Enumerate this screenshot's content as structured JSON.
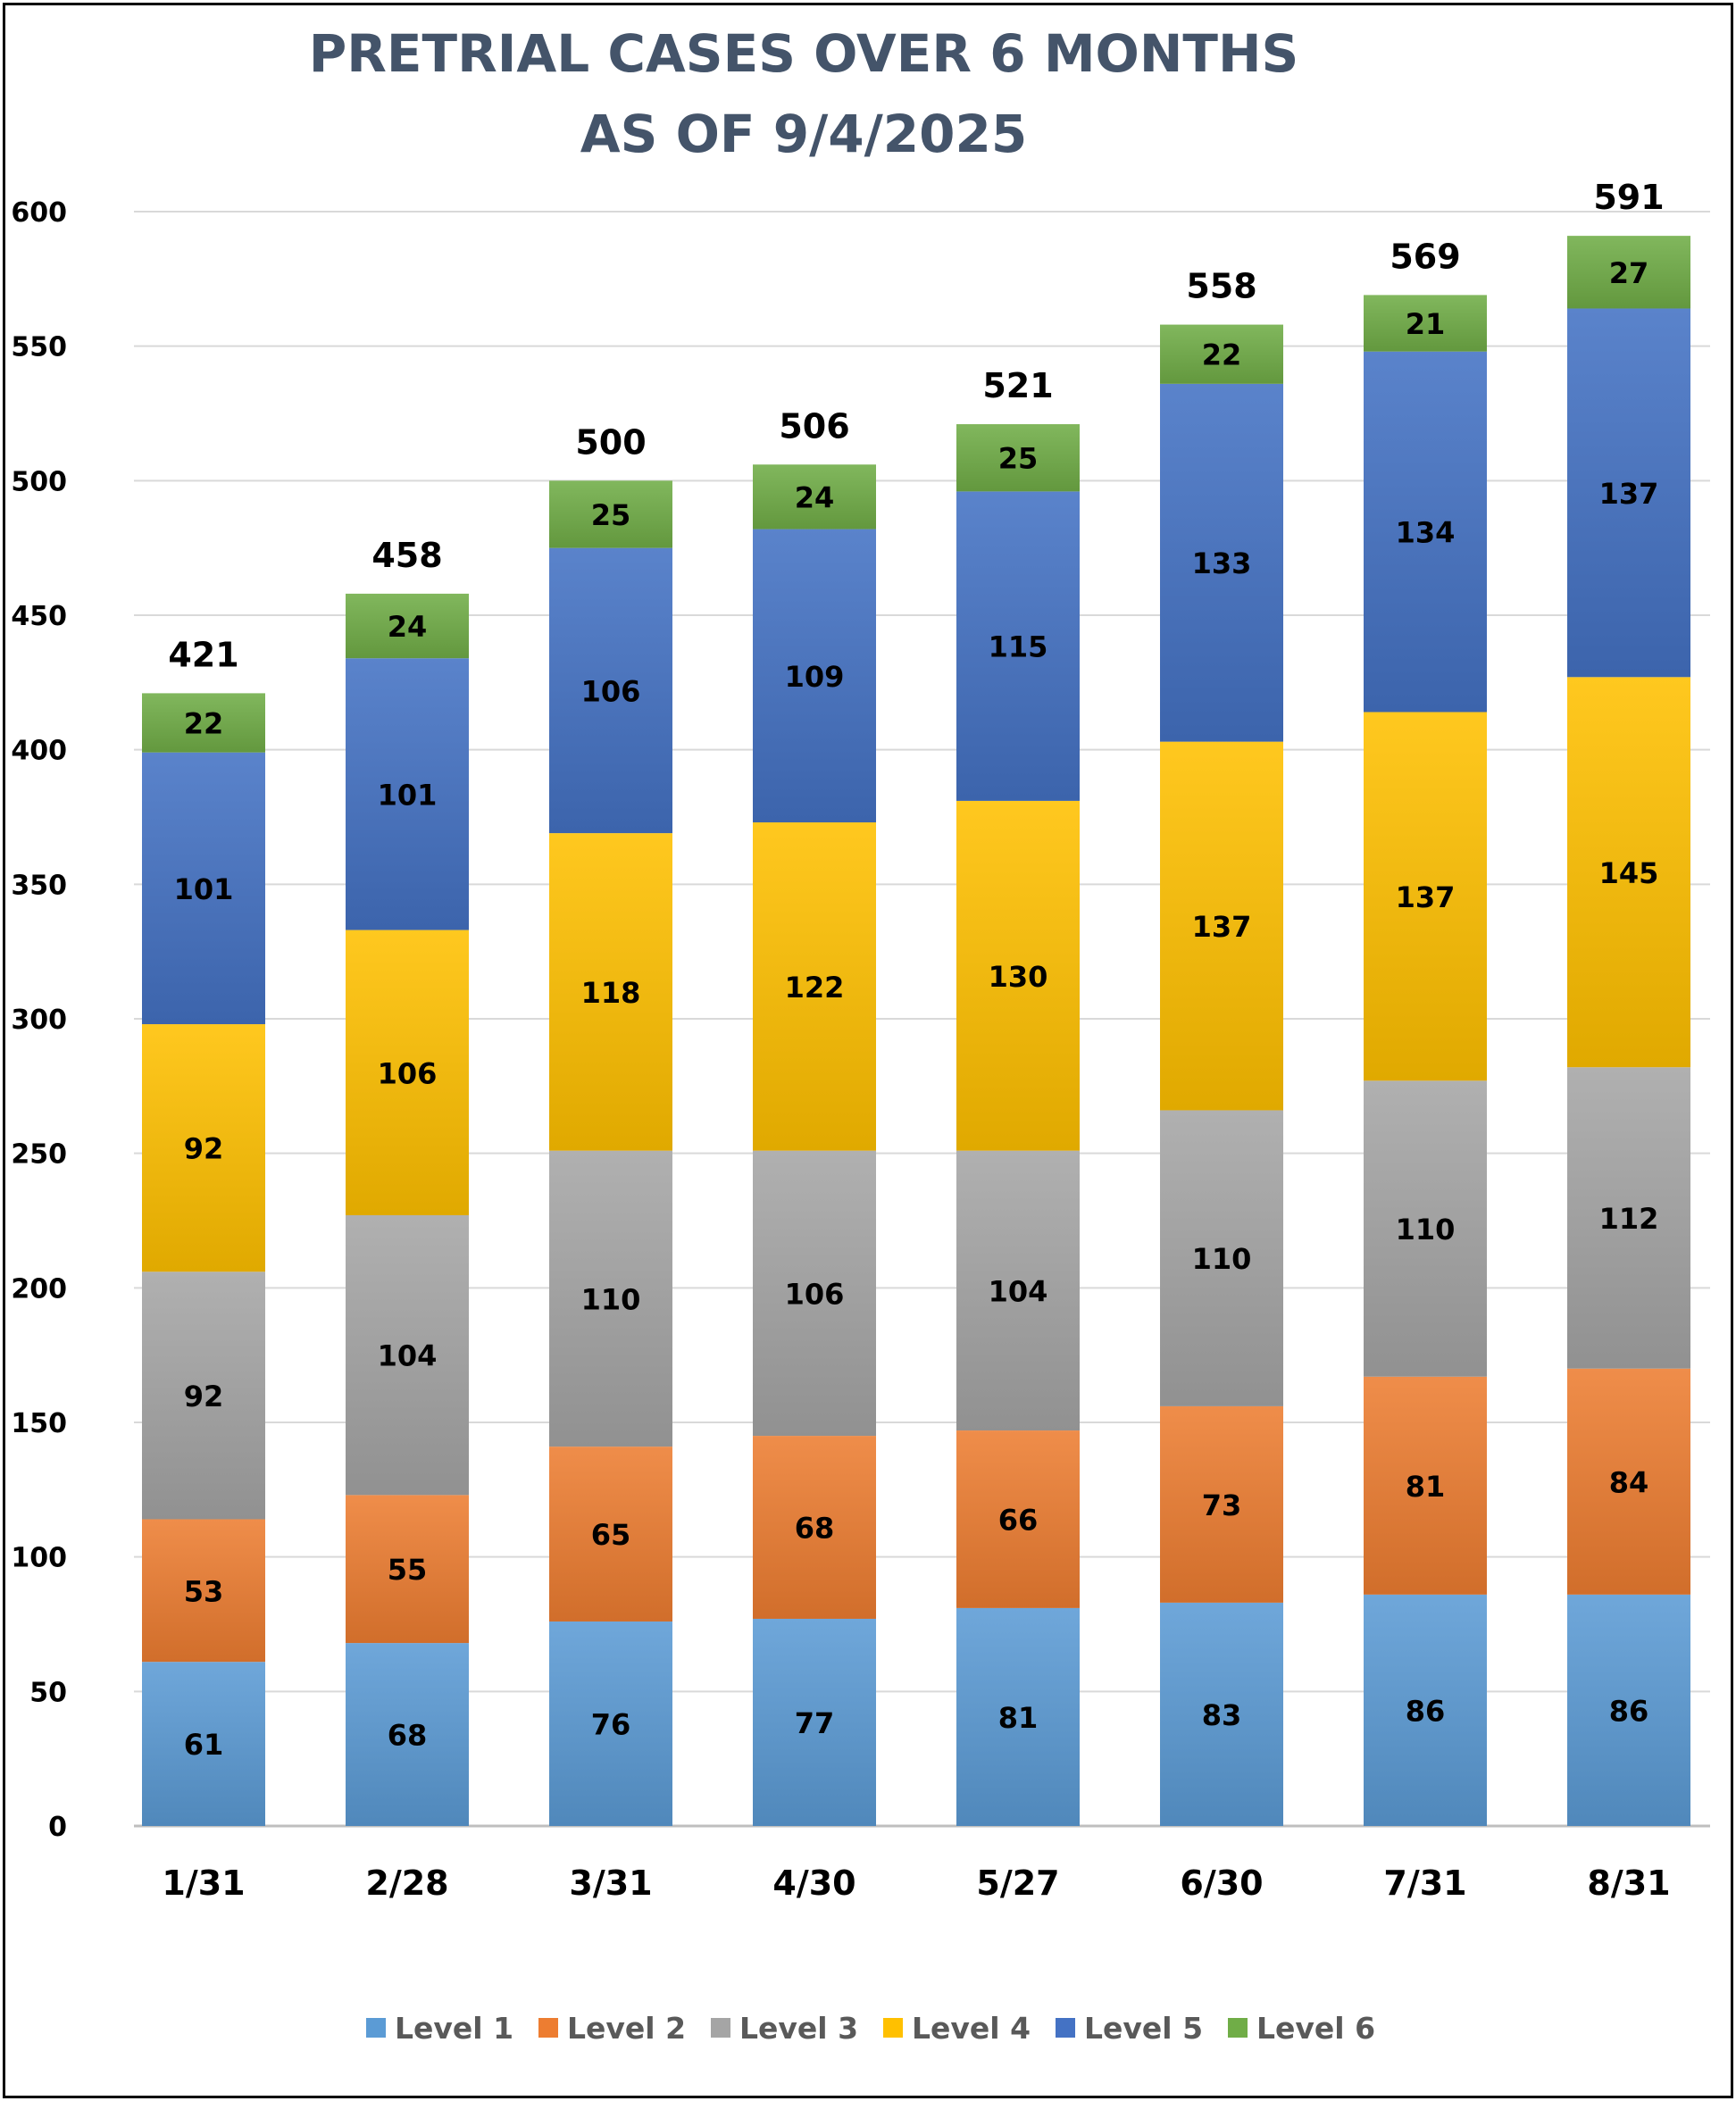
{
  "chart_data": {
    "type": "bar",
    "stacked": true,
    "title": "PRETRIAL CASES OVER 6 MONTHS",
    "subtitle": "AS OF 9/4/2025",
    "categories": [
      "1/31",
      "2/28",
      "3/31",
      "4/30",
      "5/27",
      "6/30",
      "7/31",
      "8/31"
    ],
    "series": [
      {
        "name": "Level 1",
        "color": "#5B9BD5",
        "values": [
          61,
          68,
          76,
          77,
          81,
          83,
          86,
          86
        ]
      },
      {
        "name": "Level 2",
        "color": "#ED7D31",
        "values": [
          53,
          55,
          65,
          68,
          66,
          73,
          81,
          84
        ]
      },
      {
        "name": "Level 3",
        "color": "#A5A5A5",
        "values": [
          92,
          104,
          110,
          106,
          104,
          110,
          110,
          112
        ]
      },
      {
        "name": "Level 4",
        "color": "#FFC000",
        "values": [
          92,
          106,
          118,
          122,
          130,
          137,
          137,
          145
        ]
      },
      {
        "name": "Level 5",
        "color": "#4472C4",
        "values": [
          101,
          101,
          106,
          109,
          115,
          133,
          134,
          137
        ]
      },
      {
        "name": "Level 6",
        "color": "#70AD47",
        "values": [
          22,
          24,
          25,
          24,
          25,
          22,
          21,
          27
        ]
      }
    ],
    "totals": [
      421,
      458,
      500,
      506,
      521,
      558,
      569,
      591
    ],
    "ylim": [
      0,
      600
    ],
    "yticks": [
      "0",
      "50",
      "100",
      "150",
      "200",
      "250",
      "300",
      "350",
      "400",
      "450",
      "500",
      "550",
      "600"
    ],
    "grid": true,
    "legend_position": "bottom",
    "xlabel": "",
    "ylabel": ""
  }
}
